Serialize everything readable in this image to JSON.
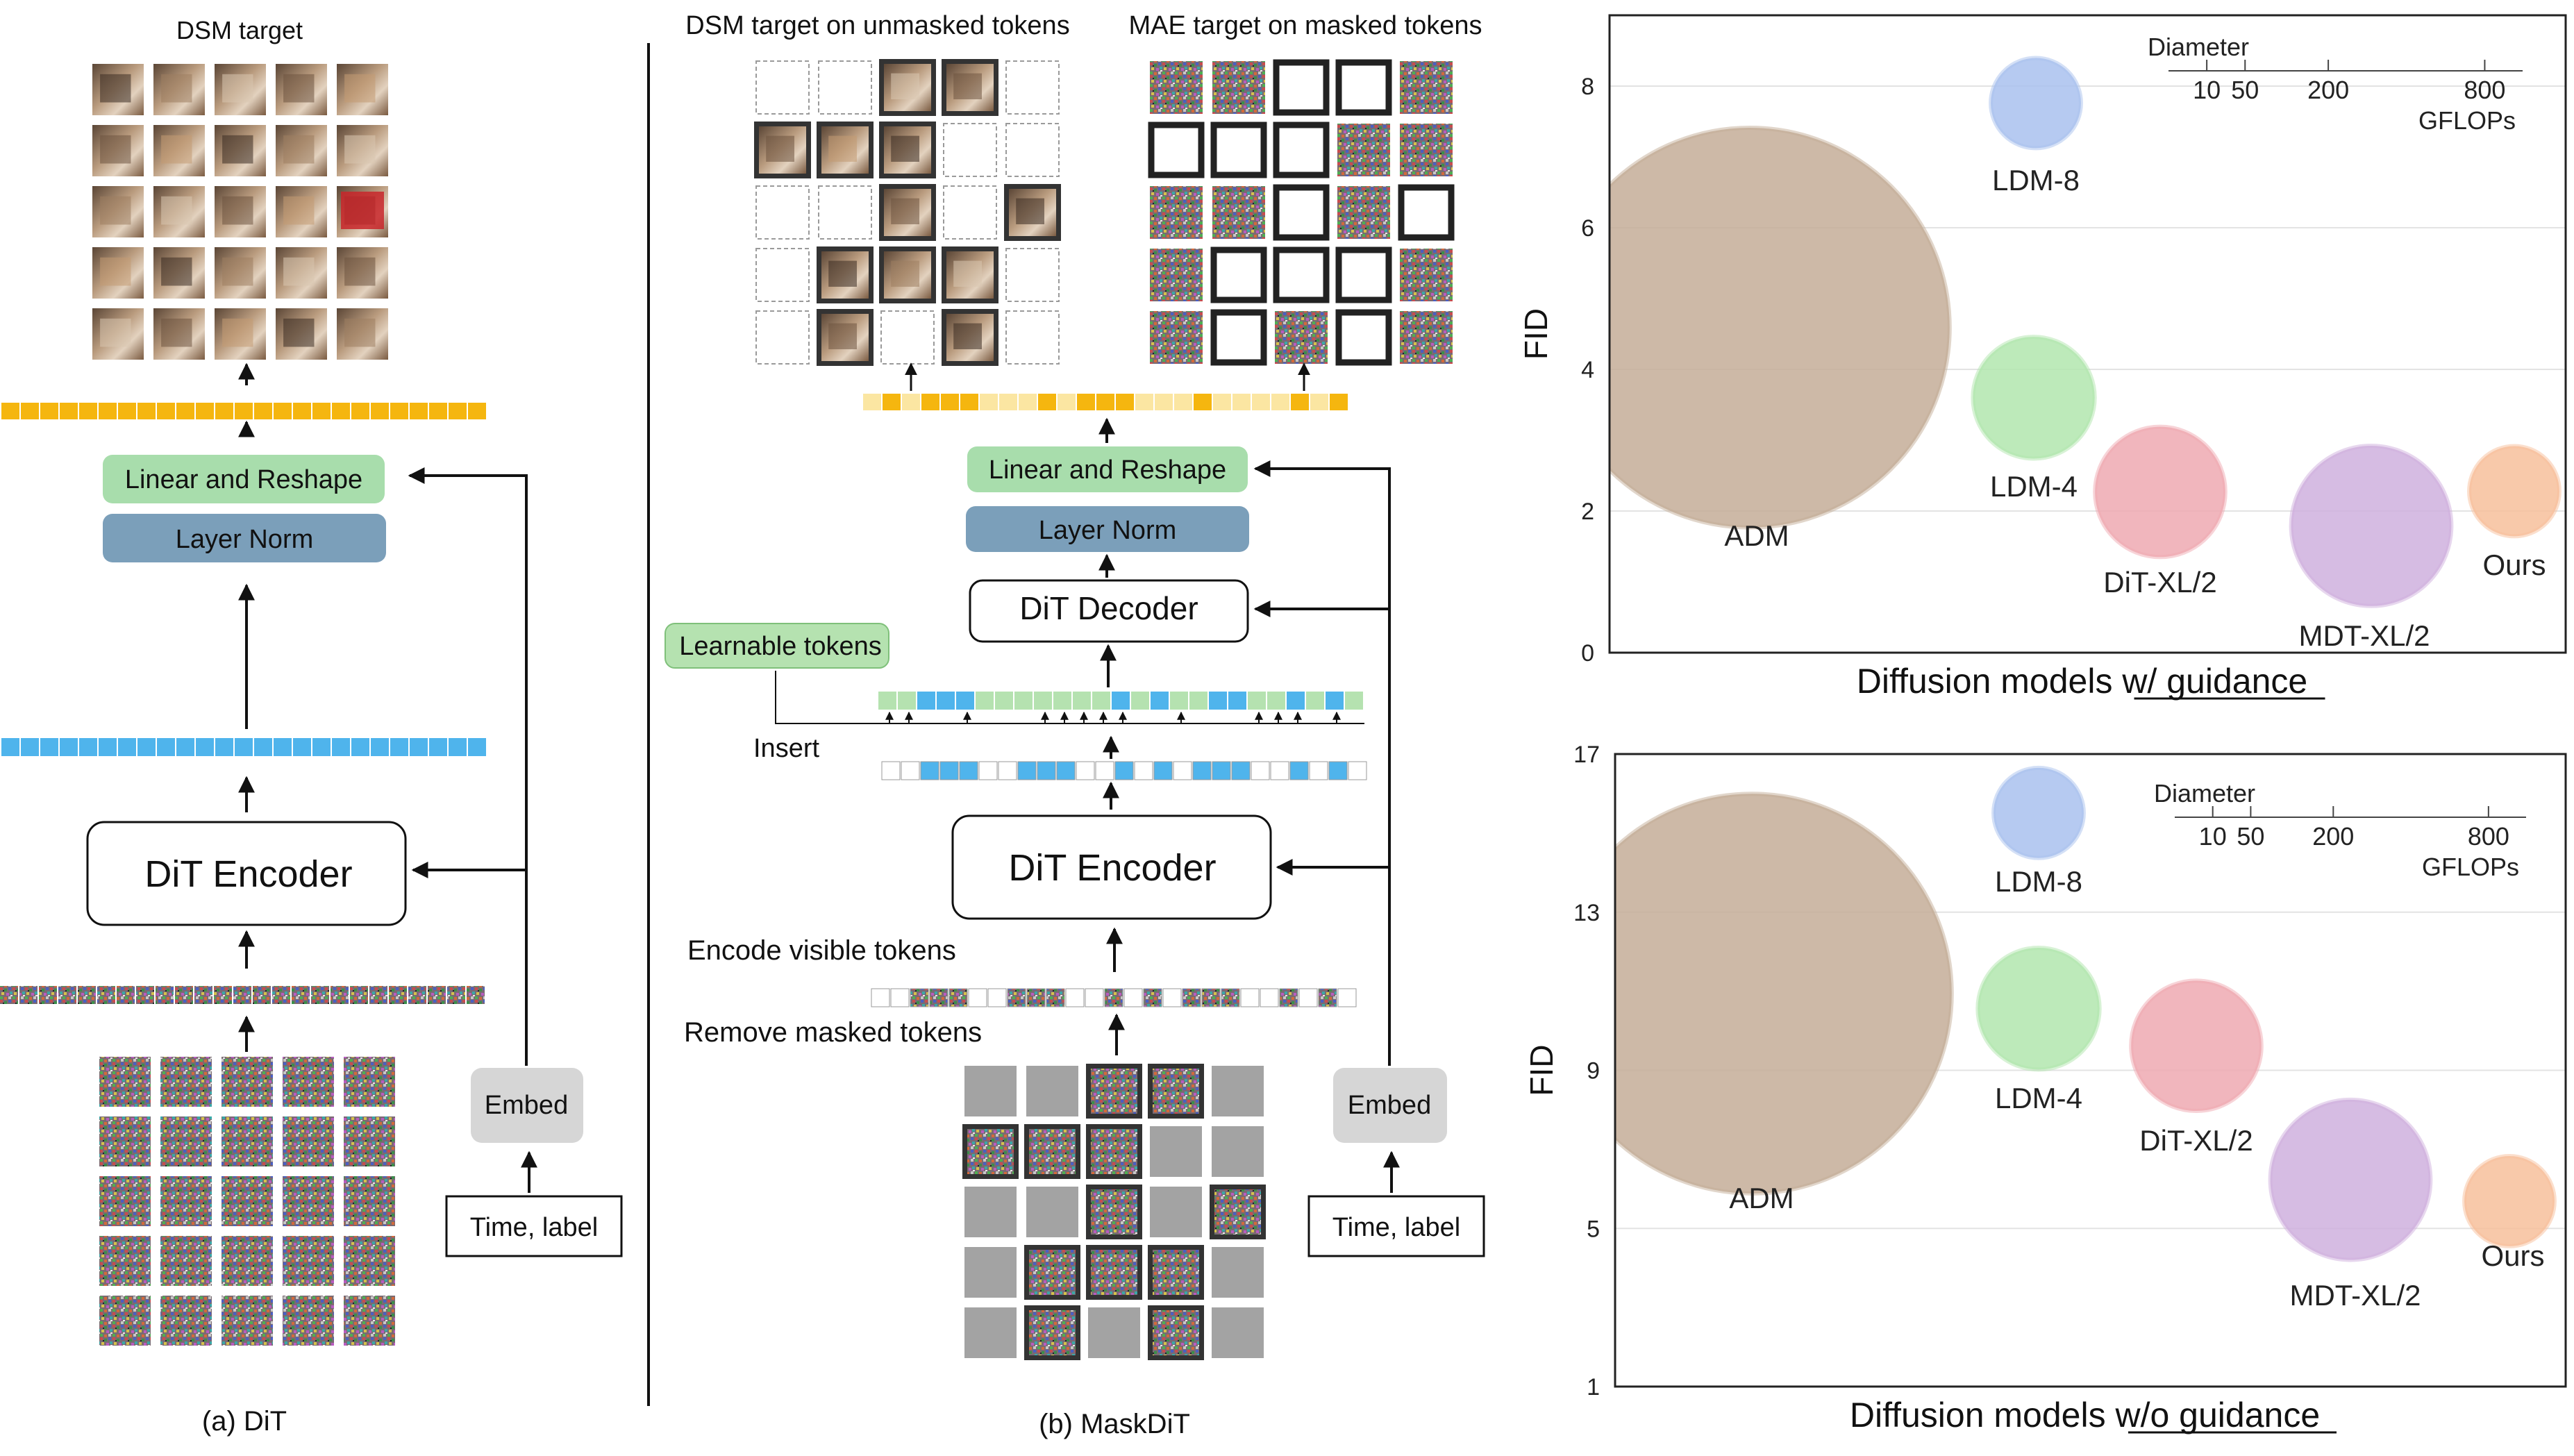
{
  "colors": {
    "yellow_token": "#f5b60f",
    "pale_yellow": "#fbe6a2",
    "blue_token": "#4fb4ec",
    "green_token": "#b5e2b0",
    "green_box": "#a8ddac",
    "blue_box": "#7b9fba",
    "embed_box": "#d6d6d6",
    "mask_gray": "#a3a3a3",
    "adm": "#c4ad98",
    "ldm8": "#a9c1ee",
    "ldm4": "#b1e6ae",
    "dit": "#efa9b1",
    "mdt": "#cfb0de",
    "ours": "#f7bf9b"
  },
  "dit_panel": {
    "title": "DSM target",
    "linear_label": "Linear and Reshape",
    "layernorm_label": "Layer Norm",
    "encoder_label": "DiT Encoder",
    "embed_label": "Embed",
    "time_label": "Time, label",
    "caption": "(a) DiT"
  },
  "maskdit_panel": {
    "dsm_title": "DSM target on unmasked tokens",
    "mae_title": "MAE target on masked tokens",
    "linear_label": "Linear and Reshape",
    "layernorm_label": "Layer Norm",
    "decoder_label": "DiT Decoder",
    "learnable_label": "Learnable tokens",
    "insert_label": "Insert",
    "encoder_label": "DiT Encoder",
    "encode_visible_label": "Encode visible tokens",
    "remove_masked_label": "Remove masked tokens",
    "embed_label": "Embed",
    "time_label": "Time, label",
    "caption": "(b) MaskDiT"
  },
  "chart_data": [
    {
      "type": "scatter",
      "title": "Diffusion models w/ guidance",
      "xlabel": "",
      "ylabel": "FID",
      "ylim": [
        0,
        9
      ],
      "yticks": [
        0,
        2,
        4,
        6,
        8
      ],
      "grid": true,
      "legend": {
        "title": "Diameter",
        "ticks": [
          "10",
          "50",
          "200",
          "800"
        ],
        "unit": "GFLOPs",
        "placement": "top-right"
      },
      "series": [
        {
          "name": "ADM",
          "fid": 4.59,
          "gflops": 1120,
          "color": "#c4ad98"
        },
        {
          "name": "LDM-8",
          "fid": 7.76,
          "gflops": 57,
          "color": "#a9c1ee"
        },
        {
          "name": "LDM-4",
          "fid": 3.6,
          "gflops": 104,
          "color": "#b1e6ae"
        },
        {
          "name": "DiT-XL/2",
          "fid": 2.27,
          "gflops": 119,
          "color": "#efa9b1"
        },
        {
          "name": "MDT-XL/2",
          "fid": 1.79,
          "gflops": 180,
          "color": "#cfb0de"
        },
        {
          "name": "Ours",
          "fid": 2.28,
          "gflops": 57,
          "color": "#f7bf9b"
        }
      ]
    },
    {
      "type": "scatter",
      "title": "Diffusion models w/o guidance",
      "xlabel": "",
      "ylabel": "FID",
      "ylim": [
        1,
        17
      ],
      "yticks": [
        1,
        5,
        9,
        13,
        17
      ],
      "grid": true,
      "legend": {
        "title": "Diameter",
        "ticks": [
          "10",
          "50",
          "200",
          "800"
        ],
        "unit": "GFLOPs",
        "placement": "top-right"
      },
      "series": [
        {
          "name": "ADM",
          "fid": 10.94,
          "gflops": 1120,
          "color": "#c4ad98"
        },
        {
          "name": "LDM-8",
          "fid": 15.51,
          "gflops": 57,
          "color": "#a9c1ee"
        },
        {
          "name": "LDM-4",
          "fid": 10.56,
          "gflops": 104,
          "color": "#b1e6ae"
        },
        {
          "name": "DiT-XL/2",
          "fid": 9.62,
          "gflops": 119,
          "color": "#efa9b1"
        },
        {
          "name": "MDT-XL/2",
          "fid": 6.23,
          "gflops": 180,
          "color": "#cfb0de"
        },
        {
          "name": "Ours",
          "fid": 5.69,
          "gflops": 57,
          "color": "#f7bf9b"
        }
      ]
    }
  ]
}
